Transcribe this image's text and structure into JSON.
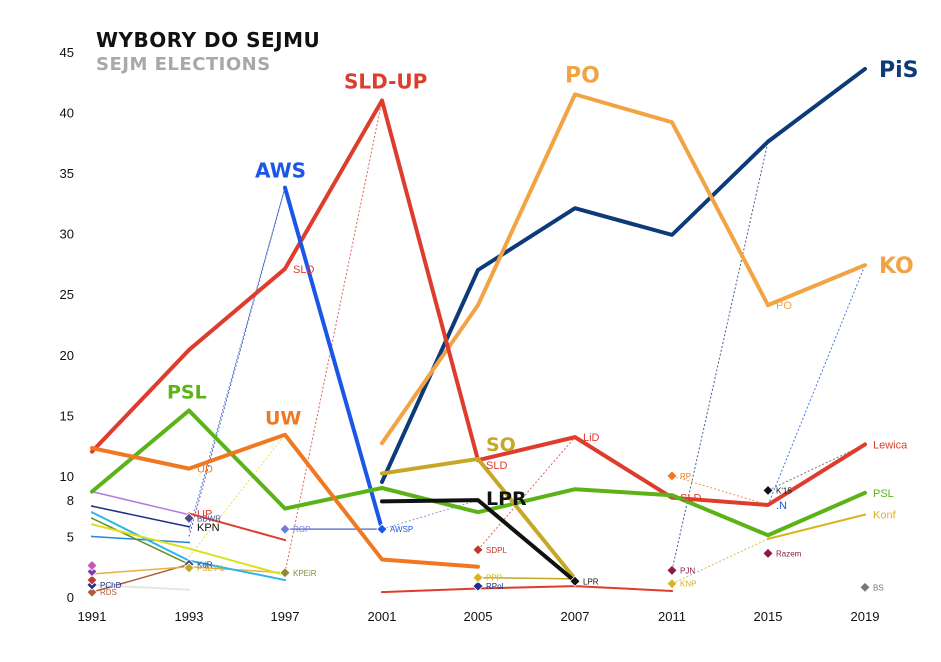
{
  "title": "WYBORY DO SEJMU",
  "subtitle": "SEJM ELECTIONS",
  "chart_data": {
    "type": "line",
    "title": "WYBORY DO SEJMU",
    "subtitle": "SEJM ELECTIONS",
    "x": [
      "1991",
      "1993",
      "1997",
      "2001",
      "2005",
      "2007",
      "2011",
      "2015",
      "2019"
    ],
    "ylim": [
      0,
      45
    ],
    "yticks": [
      0,
      5,
      8,
      10,
      15,
      20,
      25,
      30,
      35,
      40,
      45
    ],
    "grid": false,
    "series": [
      {
        "name": "PiS",
        "color": "#0d3a78",
        "width": 4,
        "points": [
          [
            "2001",
            9.5
          ],
          [
            "2005",
            27.0
          ],
          [
            "2007",
            32.1
          ],
          [
            "2011",
            29.9
          ],
          [
            "2015",
            37.6
          ],
          [
            "2019",
            43.6
          ]
        ]
      },
      {
        "name": "PO",
        "color": "#f2a444",
        "width": 4,
        "points": [
          [
            "2001",
            12.7
          ],
          [
            "2005",
            24.1
          ],
          [
            "2007",
            41.5
          ],
          [
            "2011",
            39.2
          ],
          [
            "2015",
            24.1
          ]
        ]
      },
      {
        "name": "KO",
        "color": "#f2a444",
        "width": 4,
        "points": [
          [
            "2015",
            24.1
          ],
          [
            "2019",
            27.4
          ]
        ]
      },
      {
        "name": "SLD-UP",
        "color": "#de3c2c",
        "width": 4,
        "points": [
          [
            "1991",
            12.0
          ],
          [
            "1993",
            20.4
          ],
          [
            "1997",
            27.1
          ],
          [
            "2001",
            41.0
          ],
          [
            "2005",
            11.3
          ]
        ]
      },
      {
        "name": "LiD",
        "color": "#de3c2c",
        "width": 4,
        "points": [
          [
            "2005",
            11.3
          ],
          [
            "2007",
            13.2
          ],
          [
            "2011",
            8.2
          ],
          [
            "2015",
            7.6
          ],
          [
            "2019",
            12.6
          ]
        ]
      },
      {
        "name": "AWS",
        "color": "#1a56e8",
        "width": 4,
        "points": [
          [
            "1997",
            33.8
          ],
          [
            "2001",
            5.6
          ]
        ]
      },
      {
        "name": "PSL",
        "color": "#5bb318",
        "width": 4,
        "points": [
          [
            "1991",
            8.7
          ],
          [
            "1993",
            15.4
          ],
          [
            "1997",
            7.3
          ],
          [
            "2001",
            9.0
          ],
          [
            "2005",
            7.0
          ],
          [
            "2007",
            8.9
          ],
          [
            "2011",
            8.4
          ],
          [
            "2015",
            5.1
          ],
          [
            "2019",
            8.6
          ]
        ]
      },
      {
        "name": "UW",
        "color": "#f07820",
        "width": 4,
        "points": [
          [
            "1991",
            12.3
          ],
          [
            "1993",
            10.6
          ],
          [
            "1997",
            13.4
          ],
          [
            "2001",
            3.1
          ],
          [
            "2005",
            2.5
          ]
        ]
      },
      {
        "name": "SO",
        "color": "#c6a826",
        "width": 4,
        "points": [
          [
            "2001",
            10.2
          ],
          [
            "2005",
            11.4
          ],
          [
            "2007",
            1.5
          ]
        ]
      },
      {
        "name": "LPR",
        "color": "#111111",
        "width": 4,
        "points": [
          [
            "2001",
            7.9
          ],
          [
            "2005",
            8.0
          ],
          [
            "2007",
            1.3
          ]
        ]
      },
      {
        "name": "Konf",
        "color": "#d9b320",
        "width": 2,
        "points": [
          [
            "2015",
            4.8
          ],
          [
            "2019",
            6.8
          ]
        ]
      },
      {
        "name": "",
        "color": "#1d2f8a",
        "width": 1.5,
        "points": [
          [
            "1991",
            7.5
          ],
          [
            "1993",
            5.8
          ]
        ]
      },
      {
        "name": "",
        "color": "#b27be0",
        "width": 1.5,
        "points": [
          [
            "1991",
            8.7
          ],
          [
            "1993",
            6.8
          ]
        ]
      },
      {
        "name": "",
        "color": "#de3c2c",
        "width": 2,
        "points": [
          [
            "1993",
            6.9
          ],
          [
            "1997",
            4.7
          ]
        ]
      },
      {
        "name": "",
        "color": "#1a8ce0",
        "width": 1.5,
        "points": [
          [
            "1991",
            5.0
          ],
          [
            "1993",
            4.5
          ]
        ]
      },
      {
        "name": "",
        "color": "#2db5e8",
        "width": 2,
        "points": [
          [
            "1991",
            7.0
          ],
          [
            "1993",
            3.0
          ],
          [
            "1997",
            1.4
          ]
        ]
      },
      {
        "name": "",
        "color": "#dede1c",
        "width": 2,
        "points": [
          [
            "1991",
            6.0
          ],
          [
            "1993",
            4.0
          ],
          [
            "1997",
            1.8
          ]
        ]
      },
      {
        "name": "",
        "color": "#6b8e23",
        "width": 1.5,
        "points": [
          [
            "1991",
            6.5
          ],
          [
            "1993",
            2.7
          ]
        ]
      },
      {
        "name": "",
        "color": "#b05c3c",
        "width": 1.5,
        "points": [
          [
            "1991",
            0.4
          ],
          [
            "1993",
            2.7
          ]
        ]
      },
      {
        "name": "",
        "color": "#e6e6e6",
        "width": 2,
        "points": [
          [
            "1991",
            1.0
          ],
          [
            "1993",
            0.6
          ]
        ]
      },
      {
        "name": "",
        "color": "#e8b040",
        "width": 1.5,
        "points": [
          [
            "1991",
            1.9
          ],
          [
            "1993",
            2.5
          ],
          [
            "1997",
            2.0
          ]
        ]
      },
      {
        "name": "",
        "color": "#de3c2c",
        "width": 2,
        "points": [
          [
            "2001",
            0.4
          ],
          [
            "2005",
            0.7
          ],
          [
            "2007",
            0.9
          ],
          [
            "2011",
            0.5
          ]
        ]
      },
      {
        "name": "",
        "color": "#c6a826",
        "width": 1.5,
        "points": [
          [
            "2005",
            1.6
          ],
          [
            "2007",
            1.5
          ]
        ]
      },
      {
        "name": "",
        "color": "#6c7fd6",
        "width": 1.5,
        "points": [
          [
            "1997",
            5.6
          ],
          [
            "2001",
            5.6
          ]
        ]
      }
    ],
    "transfers": [
      {
        "color": "#1a56e8",
        "from": [
          "1993",
          5.5
        ],
        "to": [
          "1997",
          33.8
        ]
      },
      {
        "color": "#1d2f8a",
        "from": [
          "1993",
          5.0
        ],
        "to": [
          "1997",
          33.8
        ]
      },
      {
        "color": "#de3c2c",
        "from": [
          "1997",
          27.1
        ],
        "to": [
          "2001",
          41.0
        ]
      },
      {
        "color": "#de3c2c",
        "from": [
          "1997",
          2.0
        ],
        "to": [
          "2001",
          41.0
        ]
      },
      {
        "color": "#dede1c",
        "from": [
          "1993",
          3.3
        ],
        "to": [
          "1997",
          13.4
        ]
      },
      {
        "color": "#0d3a78",
        "from": [
          "2005",
          27.0
        ],
        "to": [
          "2007",
          32.1
        ]
      },
      {
        "color": "#de3c2c",
        "from": [
          "2005",
          3.9
        ],
        "to": [
          "2007",
          13.2
        ]
      },
      {
        "color": "#0d3a78",
        "from": [
          "2011",
          2.2
        ],
        "to": [
          "2015",
          37.6
        ]
      },
      {
        "color": "#1a56e8",
        "from": [
          "2015",
          7.6
        ],
        "to": [
          "2019",
          27.4
        ]
      },
      {
        "color": "#f07820",
        "from": [
          "2011",
          10.0
        ],
        "to": [
          "2015",
          7.6
        ]
      },
      {
        "color": "#c6a826",
        "from": [
          "2011",
          1.1
        ],
        "to": [
          "2015",
          4.8
        ]
      },
      {
        "color": "#555555",
        "from": [
          "2015",
          8.8
        ],
        "to": [
          "2019",
          12.6
        ]
      },
      {
        "color": "#6c7fd6",
        "from": [
          "2001",
          5.6
        ],
        "to": [
          "2005",
          8.0
        ]
      },
      {
        "color": "#0d3a78",
        "from": [
          "2001",
          9.5
        ],
        "to": [
          "2005",
          27.0
        ]
      }
    ],
    "markers": [
      {
        "x": "1991",
        "y": 0.4,
        "color": "#b05c3c",
        "label": "RDS"
      },
      {
        "x": "1991",
        "y": 1.0,
        "color": "#1d2f8a",
        "label": "PChD"
      },
      {
        "x": "1991",
        "y": 1.4,
        "color": "#c0392b",
        "label": ""
      },
      {
        "x": "1991",
        "y": 2.1,
        "color": "#7d3cb5",
        "label": ""
      },
      {
        "x": "1991",
        "y": 2.6,
        "color": "#c45ab0",
        "label": ""
      },
      {
        "x": "1993",
        "y": 2.7,
        "color": "#2b3a8c",
        "label": "KdR"
      },
      {
        "x": "1993",
        "y": 2.4,
        "color": "#c6a826",
        "label": "PSL-PL"
      },
      {
        "x": "1993",
        "y": 6.5,
        "color": "#4a4a8c",
        "label": "BBWR"
      },
      {
        "x": "1997",
        "y": 5.6,
        "color": "#6c7fd6",
        "label": "ROP"
      },
      {
        "x": "1997",
        "y": 2.0,
        "color": "#8a8a3c",
        "label": "KPEiR"
      },
      {
        "x": "2001",
        "y": 5.6,
        "color": "#1a56e8",
        "label": "AWSP"
      },
      {
        "x": "2005",
        "y": 3.9,
        "color": "#c0392b",
        "label": "SDPL"
      },
      {
        "x": "2005",
        "y": 0.9,
        "color": "#1d2f8a",
        "label": "RPol"
      },
      {
        "x": "2005",
        "y": 1.6,
        "color": "#d9b320",
        "label": "PPP"
      },
      {
        "x": "2007",
        "y": 1.3,
        "color": "#111111",
        "label": "LPR"
      },
      {
        "x": "2011",
        "y": 2.2,
        "color": "#8b1a4a",
        "label": "PJN"
      },
      {
        "x": "2011",
        "y": 1.1,
        "color": "#d9b320",
        "label": "KNP"
      },
      {
        "x": "2011",
        "y": 10.0,
        "color": "#f07820",
        "label": "RP"
      },
      {
        "x": "2015",
        "y": 8.8,
        "color": "#111111",
        "label": "K'15"
      },
      {
        "x": "2015",
        "y": 3.6,
        "color": "#8b1a4a",
        "label": "Razem"
      },
      {
        "x": "2019",
        "y": 0.8,
        "color": "#777777",
        "label": "BS"
      }
    ],
    "big_labels": [
      {
        "text": "PiS",
        "x": "2019",
        "y": 43.6,
        "dx": 14,
        "dy": 8,
        "color": "#0d3a78",
        "size": 22
      },
      {
        "text": "PO",
        "x": "2007",
        "y": 41.5,
        "dx": -10,
        "dy": -12,
        "color": "#f2a444",
        "size": 22
      },
      {
        "text": "KO",
        "x": "2019",
        "y": 27.4,
        "dx": 14,
        "dy": 8,
        "color": "#f2a444",
        "size": 22
      },
      {
        "text": "SLD-UP",
        "x": "2001",
        "y": 41.0,
        "dx": -38,
        "dy": -12,
        "color": "#de3c2c",
        "size": 20
      },
      {
        "text": "AWS",
        "x": "1997",
        "y": 33.8,
        "dx": -30,
        "dy": -10,
        "color": "#1a56e8",
        "size": 20
      },
      {
        "text": "PSL",
        "x": "1993",
        "y": 15.4,
        "dx": -22,
        "dy": -12,
        "color": "#5bb318",
        "size": 19
      },
      {
        "text": "UW",
        "x": "1997",
        "y": 13.4,
        "dx": -20,
        "dy": -10,
        "color": "#f07820",
        "size": 19
      },
      {
        "text": "SO",
        "x": "2005",
        "y": 11.4,
        "dx": 8,
        "dy": -8,
        "color": "#c6a826",
        "size": 19
      },
      {
        "text": "LPR",
        "x": "2005",
        "y": 8.0,
        "dx": 8,
        "dy": 5,
        "color": "#111111",
        "size": 19
      }
    ],
    "side_labels": [
      {
        "text": "Lewica",
        "x": "2019",
        "y": 12.6,
        "color": "#de3c2c"
      },
      {
        "text": "PSL",
        "x": "2019",
        "y": 8.6,
        "color": "#5bb318"
      },
      {
        "text": "Konf",
        "x": "2019",
        "y": 6.8,
        "color": "#d9b320"
      },
      {
        "text": "LiD",
        "x": "2007",
        "y": 13.2,
        "color": "#de3c2c"
      },
      {
        "text": "SLD",
        "x": "2005",
        "y": 10.9,
        "color": "#de3c2c"
      },
      {
        "text": "SLD",
        "x": "1997",
        "y": 27.1,
        "color": "#de3c2c"
      },
      {
        "text": "SLD",
        "x": "2011",
        "y": 8.2,
        "color": "#de3c2c"
      },
      {
        "text": "PO",
        "x": "2015",
        "y": 24.1,
        "color": "#f2a444"
      },
      {
        "text": "UD",
        "x": "1993",
        "y": 10.6,
        "color": "#f07820"
      },
      {
        "text": "UP",
        "x": "1993",
        "y": 6.9,
        "color": "#de3c2c"
      },
      {
        "text": "KPN",
        "x": "1993",
        "y": 5.8,
        "color": "#111111"
      },
      {
        "text": ".N",
        "x": "2015",
        "y": 7.6,
        "color": "#1a56e8"
      }
    ]
  }
}
